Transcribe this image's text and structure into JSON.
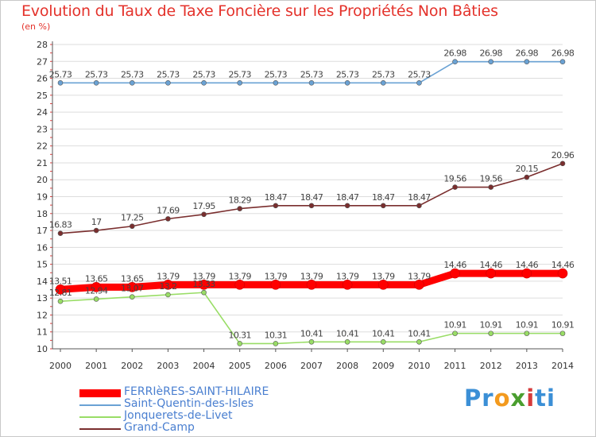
{
  "chart_data": {
    "type": "line",
    "title": "Evolution du Taux de Taxe Foncière sur les Propriétés Non Bâties",
    "ylabel": "(en %)",
    "xlabel": "",
    "ylim": [
      10,
      28
    ],
    "yticks": [
      10,
      11,
      12,
      13,
      14,
      15,
      16,
      17,
      18,
      19,
      20,
      21,
      22,
      23,
      24,
      25,
      26,
      27,
      28
    ],
    "grid": "horizontal",
    "legend_position": "bottom-left",
    "x": [
      "2000",
      "2001",
      "2002",
      "2003",
      "2004",
      "2005",
      "2006",
      "2007",
      "2008",
      "2009",
      "2010",
      "2011",
      "2012",
      "2013",
      "2014"
    ],
    "series": [
      {
        "name": "FERRIèRES-SAINT-HILAIRE",
        "color": "#ff0000",
        "values": [
          13.51,
          13.65,
          13.65,
          13.79,
          13.79,
          13.79,
          13.79,
          13.79,
          13.79,
          13.79,
          13.79,
          14.46,
          14.46,
          14.46,
          14.46
        ],
        "labels": [
          "13.51",
          "13.65",
          "13.65",
          "13.79",
          "13.79",
          "13.79",
          "13.79",
          "13.79",
          "13.79",
          "13.79",
          "13.79",
          "14.46",
          "14.46",
          "14.46",
          "14.46"
        ]
      },
      {
        "name": "Saint-Quentin-des-Isles",
        "color": "#6aa2d4",
        "values": [
          25.73,
          25.73,
          25.73,
          25.73,
          25.73,
          25.73,
          25.73,
          25.73,
          25.73,
          25.73,
          25.73,
          26.98,
          26.98,
          26.98,
          26.98
        ],
        "labels": [
          "25.73",
          "25.73",
          "25.73",
          "25.73",
          "25.73",
          "25.73",
          "25.73",
          "25.73",
          "25.73",
          "25.73",
          "25.73",
          "26.98",
          "26.98",
          "26.98",
          "26.98"
        ]
      },
      {
        "name": "Jonquerets-de-Livet",
        "color": "#99dd66",
        "values": [
          12.81,
          12.94,
          13.07,
          13.2,
          13.33,
          10.31,
          10.31,
          10.41,
          10.41,
          10.41,
          10.41,
          10.91,
          10.91,
          10.91,
          10.91
        ],
        "labels": [
          "12.81",
          "12.94",
          "13.07",
          "13.2",
          "13.33",
          "10.31",
          "10.31",
          "10.41",
          "10.41",
          "10.41",
          "10.41",
          "10.91",
          "10.91",
          "10.91",
          "10.91"
        ]
      },
      {
        "name": "Grand-Camp",
        "color": "#7a2e2e",
        "values": [
          16.83,
          17,
          17.25,
          17.69,
          17.95,
          18.29,
          18.47,
          18.47,
          18.47,
          18.47,
          18.47,
          19.56,
          19.56,
          20.15,
          20.96
        ],
        "labels": [
          "16.83",
          "17",
          "17.25",
          "17.69",
          "17.95",
          "18.29",
          "18.47",
          "18.47",
          "18.47",
          "18.47",
          "18.47",
          "19.56",
          "19.56",
          "20.15",
          "20.96"
        ]
      }
    ]
  },
  "branding": {
    "logo_text": "Proxiti"
  }
}
